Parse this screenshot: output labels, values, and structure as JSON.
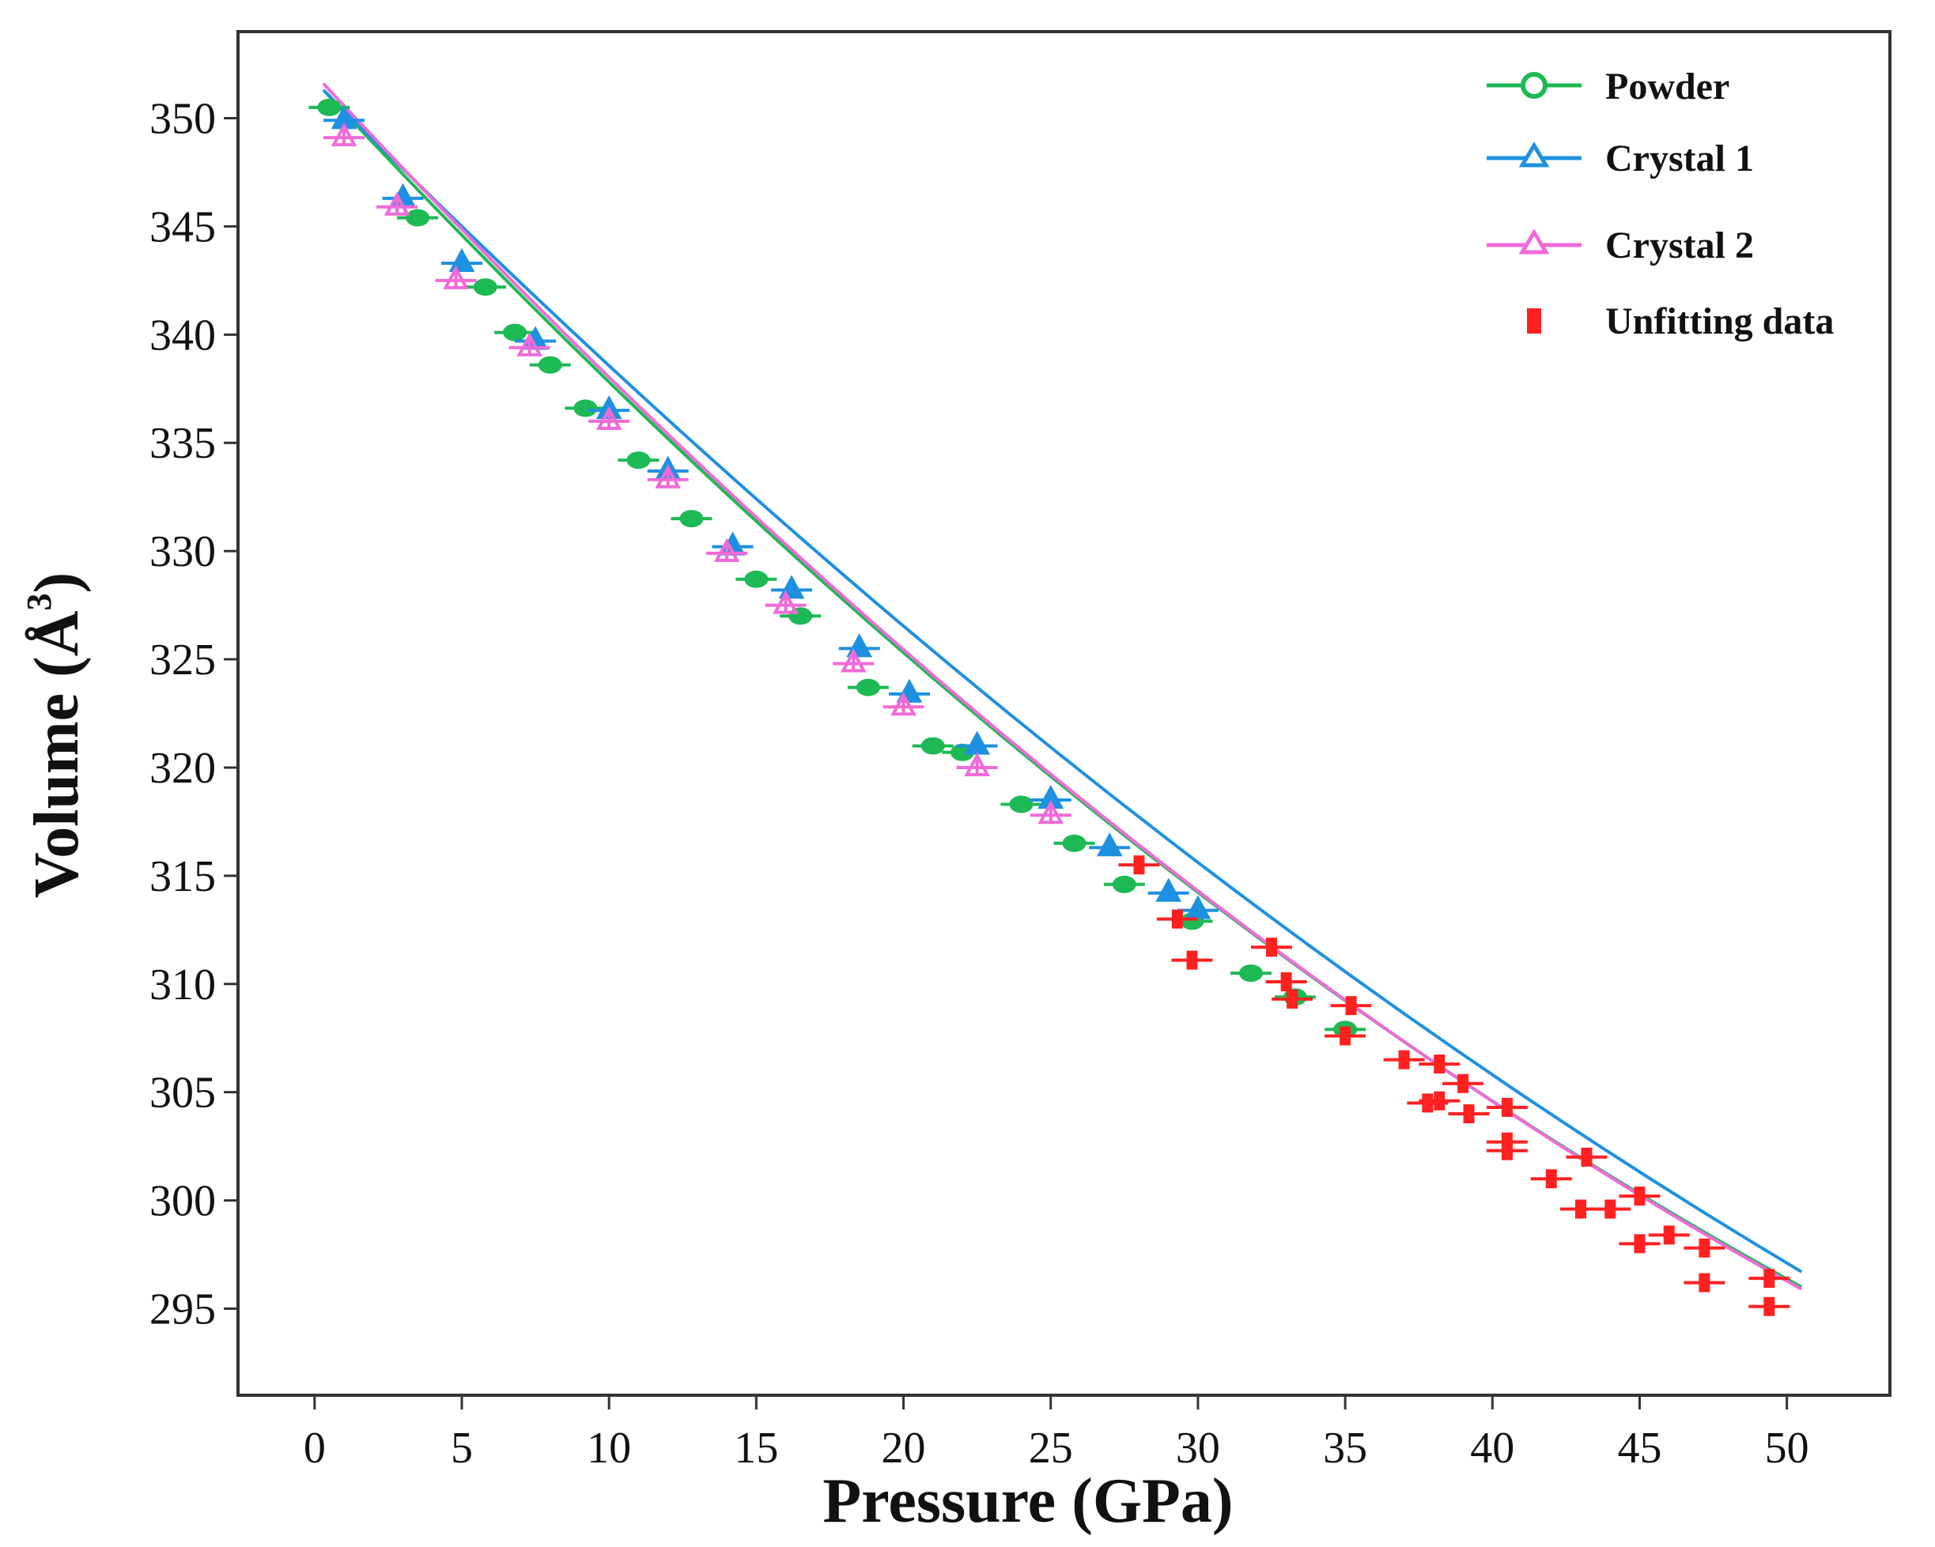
{
  "chart_data": {
    "type": "scatter",
    "title": "",
    "xlabel": "Pressure (GPa)",
    "ylabel_prefix": "Volume (",
    "ylabel_unit": "Å",
    "ylabel_exp": "3",
    "ylabel_suffix": ")",
    "xlim": [
      -2.6,
      53.5
    ],
    "ylim": [
      291,
      354
    ],
    "xticks": [
      0,
      5,
      10,
      15,
      20,
      25,
      30,
      35,
      40,
      45,
      50
    ],
    "xtick_labels": [
      "0",
      "5",
      "10",
      "15",
      "20",
      "25",
      "30",
      "35",
      "40",
      "45",
      "50"
    ],
    "yticks": [
      295,
      300,
      305,
      310,
      315,
      320,
      325,
      330,
      335,
      340,
      345,
      350
    ],
    "ytick_labels": [
      "295",
      "300",
      "305",
      "310",
      "315",
      "320",
      "325",
      "330",
      "335",
      "340",
      "345",
      "350"
    ],
    "legend_position": "top-right",
    "series": [
      {
        "name": "Powder",
        "color": "#1db954",
        "marker": "circle",
        "points": [
          [
            0.5,
            350.5
          ],
          [
            3.5,
            345.4
          ],
          [
            5.8,
            342.2
          ],
          [
            6.8,
            340.1
          ],
          [
            8.0,
            338.6
          ],
          [
            9.2,
            336.6
          ],
          [
            11.0,
            334.2
          ],
          [
            12.8,
            331.5
          ],
          [
            15.0,
            328.7
          ],
          [
            16.5,
            327.0
          ],
          [
            18.8,
            323.7
          ],
          [
            21.0,
            321.0
          ],
          [
            22.0,
            320.7
          ],
          [
            24.0,
            318.3
          ],
          [
            25.8,
            316.5
          ],
          [
            27.5,
            314.6
          ],
          [
            29.8,
            312.9
          ],
          [
            31.8,
            310.5
          ],
          [
            33.3,
            309.4
          ],
          [
            35.0,
            307.9
          ]
        ],
        "fit": [
          [
            0.3,
            351.3
          ],
          [
            50.5,
            296.0
          ]
        ],
        "fit_curvature": 0.9
      },
      {
        "name": "Crystal 1",
        "color": "#1e90e0",
        "marker": "triangle",
        "points": [
          [
            1.0,
            349.9
          ],
          [
            3.0,
            346.3
          ],
          [
            5.0,
            343.3
          ],
          [
            7.5,
            339.7
          ],
          [
            10.0,
            336.5
          ],
          [
            12.0,
            333.7
          ],
          [
            14.2,
            330.2
          ],
          [
            16.2,
            328.2
          ],
          [
            18.5,
            325.5
          ],
          [
            20.2,
            323.4
          ],
          [
            22.5,
            321.0
          ],
          [
            25.0,
            318.5
          ],
          [
            27.0,
            316.3
          ],
          [
            29.0,
            314.2
          ],
          [
            30.0,
            313.4
          ]
        ],
        "fit": [
          [
            0.3,
            351.3
          ],
          [
            50.5,
            296.7
          ]
        ],
        "fit_curvature": 0.7
      },
      {
        "name": "Crystal 2",
        "color": "#f06ad8",
        "marker": "triangle",
        "points": [
          [
            1.0,
            349.1
          ],
          [
            2.8,
            345.9
          ],
          [
            4.8,
            342.5
          ],
          [
            7.3,
            339.4
          ],
          [
            10.0,
            336.0
          ],
          [
            12.0,
            333.3
          ],
          [
            14.0,
            329.9
          ],
          [
            16.0,
            327.5
          ],
          [
            18.3,
            324.8
          ],
          [
            20.0,
            322.8
          ],
          [
            22.5,
            320.0
          ],
          [
            25.0,
            317.8
          ]
        ],
        "fit": [
          [
            0.3,
            351.6
          ],
          [
            50.5,
            295.9
          ]
        ],
        "fit_curvature": 0.9
      },
      {
        "name": "Unfitting data",
        "color": "#ff2020",
        "marker": "square",
        "points": [
          [
            28.0,
            315.5
          ],
          [
            29.3,
            313.0
          ],
          [
            29.8,
            311.1
          ],
          [
            32.5,
            311.7
          ],
          [
            33.0,
            310.1
          ],
          [
            33.2,
            309.3
          ],
          [
            35.2,
            309.0
          ],
          [
            35.0,
            307.6
          ],
          [
            37.0,
            306.5
          ],
          [
            38.2,
            306.3
          ],
          [
            39.0,
            305.4
          ],
          [
            37.8,
            304.5
          ],
          [
            38.2,
            304.6
          ],
          [
            39.2,
            304.0
          ],
          [
            40.5,
            304.3
          ],
          [
            40.5,
            302.7
          ],
          [
            40.5,
            302.3
          ],
          [
            42.0,
            301.0
          ],
          [
            43.2,
            302.0
          ],
          [
            43.0,
            299.6
          ],
          [
            44.0,
            299.6
          ],
          [
            45.0,
            300.2
          ],
          [
            45.0,
            298.0
          ],
          [
            46.0,
            298.4
          ],
          [
            47.2,
            297.8
          ],
          [
            47.2,
            296.2
          ],
          [
            49.4,
            296.4
          ],
          [
            49.4,
            295.1
          ]
        ]
      }
    ]
  }
}
